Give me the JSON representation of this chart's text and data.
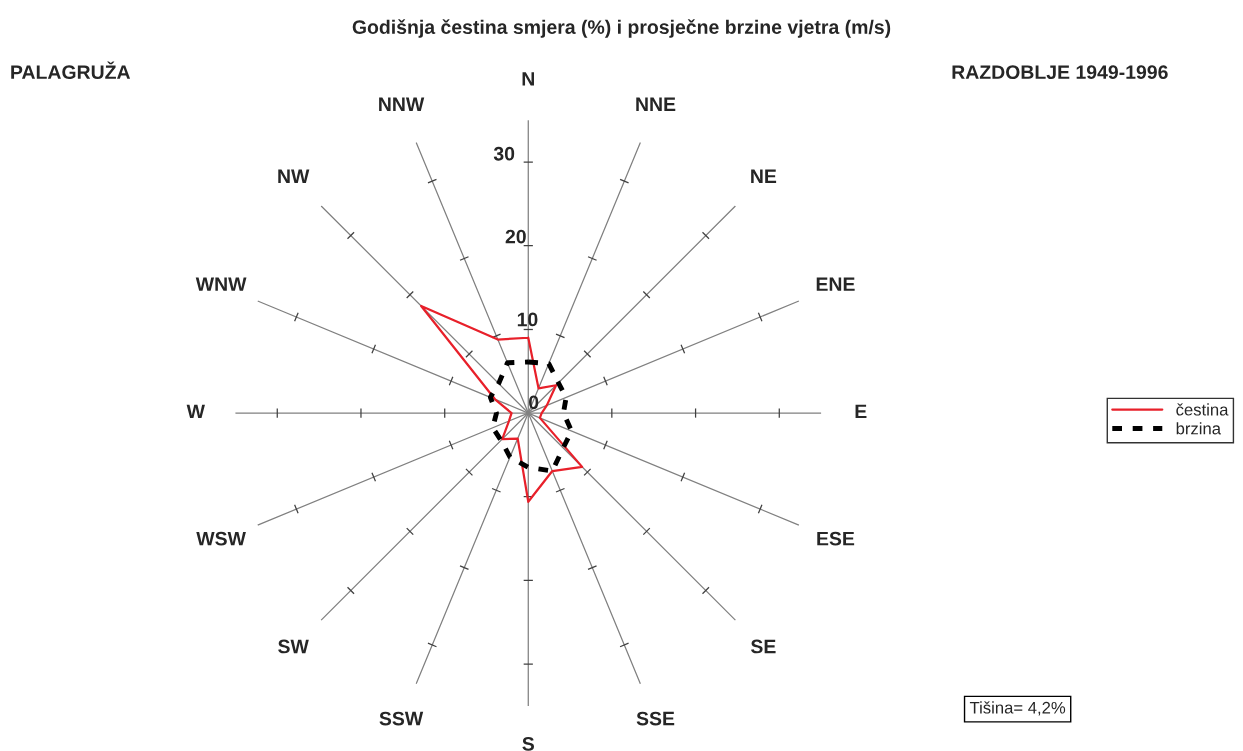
{
  "chart_data": {
    "type": "radar",
    "title": "Godišnja čestina smjera (%) i prosječne brzine vjetra (m/s)",
    "annotations": [
      "PALAGRUŽA",
      "RAZDOBLJE 1949-1996",
      "Tišina= 4,2%"
    ],
    "categories": [
      "N",
      "NNE",
      "NE",
      "ENE",
      "E",
      "ESE",
      "SE",
      "SSE",
      "S",
      "SSW",
      "SW",
      "WSW",
      "W",
      "WNW",
      "NW",
      "NNW"
    ],
    "series": [
      {
        "name": "čestina",
        "color": "#e8202a",
        "line_style": "solid",
        "values": [
          9.0,
          3.2,
          4.7,
          2.4,
          1.6,
          1.5,
          9.1,
          7.5,
          10.6,
          3.3,
          4.4,
          2.5,
          2.0,
          4.3,
          18.1,
          9.5
        ]
      },
      {
        "name": "brzina",
        "color": "#000000",
        "line_style": "dashed",
        "values": [
          6.1,
          6.4,
          5.1,
          4.9,
          4.2,
          5.6,
          5.9,
          7.5,
          6.5,
          5.7,
          4.6,
          4.6,
          3.8,
          4.9,
          5.0,
          6.5
        ]
      }
    ],
    "ylim": [
      0,
      35
    ],
    "yticks": [
      0,
      10,
      20,
      30
    ],
    "grid": true,
    "legend": "right",
    "marker": "none"
  }
}
